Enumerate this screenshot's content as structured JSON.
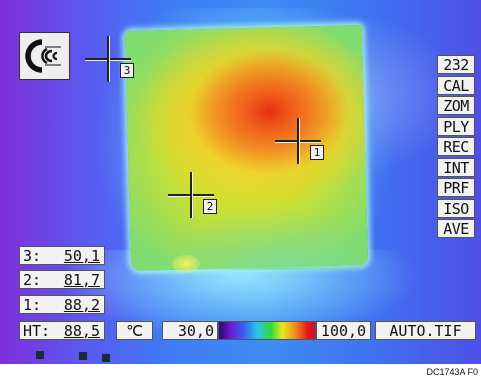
{
  "colors": {
    "background_cool": "#3d7cf5",
    "edge_cold": "#7f2fd8",
    "hotspot": "#e52f10",
    "warm": "#f7a52a",
    "mid": "#e9e230",
    "panel": "#f2f2f2"
  },
  "logo": {
    "icon": "ce-mark-icon"
  },
  "menu": {
    "items": [
      {
        "label": "232"
      },
      {
        "label": "CAL"
      },
      {
        "label": "ZOM"
      },
      {
        "label": "PLY"
      },
      {
        "label": "REC"
      },
      {
        "label": "INT"
      },
      {
        "label": "PRF"
      },
      {
        "label": "ISO"
      },
      {
        "label": "AVE"
      }
    ]
  },
  "markers": [
    {
      "label": "1"
    },
    {
      "label": "2"
    },
    {
      "label": "3"
    }
  ],
  "readouts": [
    {
      "label": "3:",
      "value": "50,1"
    },
    {
      "label": "2:",
      "value": "81,7"
    },
    {
      "label": "1:",
      "value": "88,2"
    },
    {
      "label": "HT:",
      "value": "88,5"
    }
  ],
  "status_bar": {
    "unit": "℃",
    "scale_min": "30,0",
    "scale_max": "100,0",
    "filename": "AUTO.TIF",
    "palette_icon": "rainbow-palette"
  },
  "figure_code": "DC1743A F0"
}
